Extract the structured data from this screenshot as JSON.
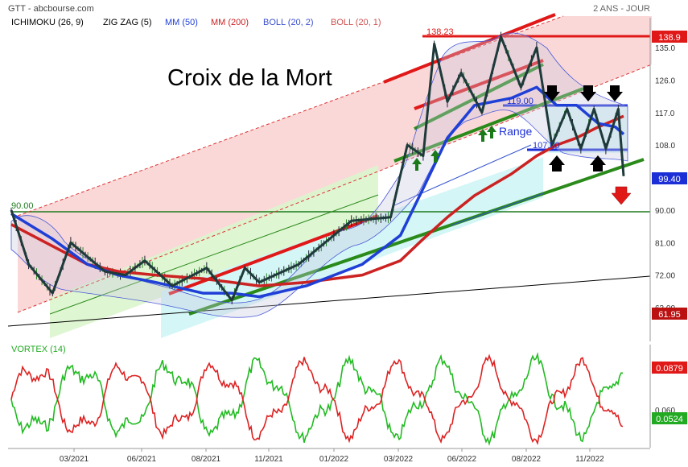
{
  "header": {
    "source": "GTT - abcbourse.com",
    "period": "2 ANS - JOUR"
  },
  "indicators": [
    {
      "label": "ICHIMOKU (26, 9)",
      "color": "#000000"
    },
    {
      "label": "ZIG ZAG (5)",
      "color": "#000000"
    },
    {
      "label": "MM (50)",
      "color": "#1f3fd6"
    },
    {
      "label": "MM (200)",
      "color": "#cc2222"
    },
    {
      "label": "BOLL (20, 2)",
      "color": "#3b4fd0"
    },
    {
      "label": "BOLL (20, 1)",
      "color": "#d05050"
    }
  ],
  "annotations": {
    "title": "Croix de la Mort",
    "range": "Range",
    "level_90": "90.00",
    "level_138": "138.23",
    "level_119": "119.00",
    "level_107": "107.00"
  },
  "price_badges": {
    "top": "138.9",
    "last": "99.40",
    "low": "61.95"
  },
  "vortex": {
    "label": "VORTEX (14)",
    "badge_red": "0.0879",
    "badge_green": "0.0524",
    "tick": "0.060"
  },
  "colors": {
    "up_channel": "#f7c9c9",
    "green_zone": "#d8f7c9",
    "cyan_zone": "#c9f7f7",
    "mm50": "#1f3fd6",
    "mm200": "#cc2222",
    "zigzag": "#1e3a3a",
    "vortex_plus": "#22bb22",
    "vortex_minus": "#dd2222"
  },
  "chart_data": {
    "type": "line",
    "ytick_values": [
      135.0,
      126.0,
      117.0,
      108.0,
      90.0,
      81.0,
      72.0,
      63.0
    ],
    "yticks": [
      "135.0",
      "126.0",
      "117.0",
      "108.0",
      "90.00",
      "81.00",
      "72.00",
      "63.00"
    ],
    "xticks": [
      "03/2021",
      "06/2021",
      "08/2021",
      "11/2021",
      "01/2022",
      "03/2022",
      "06/2022",
      "08/2022",
      "11/2022"
    ],
    "ylim": [
      58,
      140
    ],
    "zigzag": {
      "x": [
        "2020-12-15",
        "2021-01-05",
        "2021-02-03",
        "2021-02-25",
        "2021-04-12",
        "2021-05-10",
        "2021-06-04",
        "2021-06-30",
        "2021-08-02",
        "2021-09-08",
        "2021-09-27",
        "2021-10-18",
        "2021-11-29",
        "2022-01-17",
        "2022-02-22",
        "2022-03-14",
        "2022-04-06",
        "2022-04-22",
        "2022-05-11",
        "2022-05-31",
        "2022-06-20",
        "2022-07-08",
        "2022-07-27",
        "2022-08-16",
        "2022-09-07",
        "2022-09-29",
        "2022-10-19",
        "2022-11-08",
        "2022-11-28",
        "2022-12-19",
        "2022-12-28"
      ],
      "y": [
        90,
        75,
        67,
        81,
        73,
        72,
        76,
        69,
        74,
        65,
        74,
        70,
        75,
        87,
        88,
        108,
        105,
        136,
        120,
        128,
        117,
        138,
        124,
        135,
        108,
        118,
        107,
        118,
        107,
        118,
        99.4
      ]
    },
    "mm50": {
      "x": [
        "2020-12-15",
        "2021-02-03",
        "2021-03-19",
        "2021-04-30",
        "2021-06-14",
        "2021-07-29",
        "2021-09-08",
        "2021-10-18",
        "2021-12-06",
        "2022-01-27",
        "2022-03-04",
        "2022-04-06",
        "2022-05-11",
        "2022-06-13",
        "2022-07-18",
        "2022-08-16",
        "2022-09-14",
        "2022-10-13",
        "2022-11-15",
        "2022-12-14",
        "2022-12-28"
      ],
      "y": [
        89,
        82,
        75,
        72,
        70,
        67,
        67,
        66,
        69,
        75,
        83,
        96,
        110,
        119,
        121,
        124,
        119,
        119,
        114,
        113,
        111
      ]
    },
    "mm200": {
      "x": [
        "2020-12-15",
        "2021-02-03",
        "2021-03-19",
        "2021-04-30",
        "2021-06-14",
        "2021-07-29",
        "2021-09-08",
        "2021-10-18",
        "2021-12-06",
        "2022-01-27",
        "2022-03-04",
        "2022-04-06",
        "2022-05-11",
        "2022-06-13",
        "2022-07-18",
        "2022-08-16",
        "2022-09-14",
        "2022-10-13",
        "2022-11-15",
        "2022-12-14",
        "2022-12-28"
      ],
      "y": [
        86,
        80,
        75,
        73,
        72,
        71,
        70,
        69,
        70,
        72,
        76,
        82,
        88,
        94,
        100,
        105,
        108,
        110,
        113,
        115,
        116
      ]
    },
    "horizontal_levels": [
      90,
      138.23,
      119,
      107
    ]
  }
}
